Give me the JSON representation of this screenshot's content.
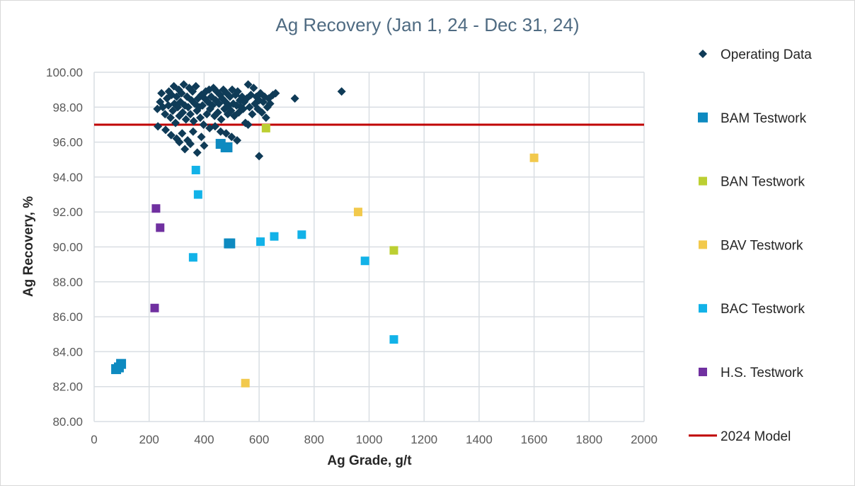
{
  "chart_data": {
    "type": "scatter",
    "title": "Ag Recovery (Jan 1, 24 - Dec 31, 24)",
    "xlabel": "Ag Grade, g/t",
    "ylabel": "Ag Recovery, %",
    "xlim": [
      0,
      2000
    ],
    "ylim": [
      80,
      100
    ],
    "x_ticks": [
      "0",
      "200",
      "400",
      "600",
      "800",
      "1000",
      "1200",
      "1400",
      "1600",
      "1800",
      "2000"
    ],
    "y_ticks": [
      "80.00",
      "82.00",
      "84.00",
      "86.00",
      "88.00",
      "90.00",
      "92.00",
      "94.00",
      "96.00",
      "98.00",
      "100.00"
    ],
    "grid": true,
    "legend": "right",
    "series": [
      {
        "name": "Operating Data",
        "marker": "diamond",
        "color": "#0f3b57",
        "points": [
          [
            230,
            97.9
          ],
          [
            240,
            98.3
          ],
          [
            245,
            98.8
          ],
          [
            250,
            98.0
          ],
          [
            258,
            97.6
          ],
          [
            265,
            98.5
          ],
          [
            270,
            98.1
          ],
          [
            272,
            98.9
          ],
          [
            278,
            97.4
          ],
          [
            282,
            98.7
          ],
          [
            286,
            97.8
          ],
          [
            290,
            99.2
          ],
          [
            292,
            98.2
          ],
          [
            296,
            97.1
          ],
          [
            300,
            98.6
          ],
          [
            304,
            98.0
          ],
          [
            308,
            99.0
          ],
          [
            310,
            97.5
          ],
          [
            314,
            98.3
          ],
          [
            318,
            98.8
          ],
          [
            322,
            97.7
          ],
          [
            326,
            99.3
          ],
          [
            330,
            98.1
          ],
          [
            334,
            97.3
          ],
          [
            338,
            98.6
          ],
          [
            342,
            98.0
          ],
          [
            346,
            99.1
          ],
          [
            350,
            97.6
          ],
          [
            354,
            98.4
          ],
          [
            358,
            98.9
          ],
          [
            362,
            97.2
          ],
          [
            366,
            98.2
          ],
          [
            370,
            99.2
          ],
          [
            374,
            97.8
          ],
          [
            378,
            98.5
          ],
          [
            382,
            98.0
          ],
          [
            386,
            97.4
          ],
          [
            390,
            98.7
          ],
          [
            394,
            98.1
          ],
          [
            398,
            97.0
          ],
          [
            402,
            98.5
          ],
          [
            406,
            98.9
          ],
          [
            410,
            97.6
          ],
          [
            414,
            98.3
          ],
          [
            418,
            99.0
          ],
          [
            422,
            97.9
          ],
          [
            426,
            98.6
          ],
          [
            430,
            98.1
          ],
          [
            434,
            99.1
          ],
          [
            438,
            97.5
          ],
          [
            442,
            98.4
          ],
          [
            446,
            98.9
          ],
          [
            450,
            97.7
          ],
          [
            454,
            98.2
          ],
          [
            458,
            98.7
          ],
          [
            462,
            97.3
          ],
          [
            466,
            98.5
          ],
          [
            470,
            99.0
          ],
          [
            474,
            97.9
          ],
          [
            478,
            98.3
          ],
          [
            482,
            98.8
          ],
          [
            486,
            97.6
          ],
          [
            490,
            98.1
          ],
          [
            494,
            98.6
          ],
          [
            498,
            97.8
          ],
          [
            502,
            99.0
          ],
          [
            506,
            98.2
          ],
          [
            510,
            97.5
          ],
          [
            514,
            98.7
          ],
          [
            518,
            98.1
          ],
          [
            522,
            98.9
          ],
          [
            526,
            97.7
          ],
          [
            530,
            98.4
          ],
          [
            534,
            98.0
          ],
          [
            538,
            98.6
          ],
          [
            542,
            97.9
          ],
          [
            546,
            98.3
          ],
          [
            550,
            97.1
          ],
          [
            555,
            98.5
          ],
          [
            560,
            99.3
          ],
          [
            565,
            98.0
          ],
          [
            570,
            98.7
          ],
          [
            575,
            97.6
          ],
          [
            580,
            99.1
          ],
          [
            585,
            98.2
          ],
          [
            590,
            98.6
          ],
          [
            595,
            97.9
          ],
          [
            600,
            98.4
          ],
          [
            605,
            98.8
          ],
          [
            610,
            97.7
          ],
          [
            615,
            98.3
          ],
          [
            620,
            98.6
          ],
          [
            625,
            97.4
          ],
          [
            630,
            98.0
          ],
          [
            635,
            98.5
          ],
          [
            640,
            98.2
          ],
          [
            650,
            98.7
          ],
          [
            660,
            98.8
          ],
          [
            232,
            96.9
          ],
          [
            260,
            96.7
          ],
          [
            280,
            96.4
          ],
          [
            300,
            96.2
          ],
          [
            310,
            96.0
          ],
          [
            320,
            96.5
          ],
          [
            330,
            95.6
          ],
          [
            340,
            96.1
          ],
          [
            350,
            95.9
          ],
          [
            360,
            96.6
          ],
          [
            375,
            95.4
          ],
          [
            390,
            96.3
          ],
          [
            400,
            95.8
          ],
          [
            420,
            96.8
          ],
          [
            440,
            96.9
          ],
          [
            460,
            96.6
          ],
          [
            480,
            96.5
          ],
          [
            500,
            96.3
          ],
          [
            520,
            96.1
          ],
          [
            560,
            97.0
          ],
          [
            600,
            95.2
          ],
          [
            730,
            98.5
          ],
          [
            900,
            98.9
          ]
        ]
      },
      {
        "name": "BAM Testwork",
        "marker": "square-large",
        "color": "#0e8ac0",
        "points": [
          [
            80,
            83.0
          ],
          [
            90,
            83.1
          ],
          [
            98,
            83.3
          ],
          [
            460,
            95.9
          ],
          [
            478,
            95.7
          ],
          [
            485,
            95.7
          ],
          [
            490,
            90.2
          ],
          [
            495,
            90.2
          ]
        ]
      },
      {
        "name": "BAN Testwork",
        "marker": "square",
        "color": "#bccf32",
        "points": [
          [
            625,
            96.8
          ],
          [
            1090,
            89.8
          ]
        ]
      },
      {
        "name": "BAV Testwork",
        "marker": "square",
        "color": "#f2c94c",
        "points": [
          [
            550,
            82.2
          ],
          [
            960,
            92.0
          ],
          [
            1600,
            95.1
          ]
        ]
      },
      {
        "name": "BAC Testwork",
        "marker": "square",
        "color": "#12b2e8",
        "points": [
          [
            370,
            94.4
          ],
          [
            378,
            93.0
          ],
          [
            360,
            89.4
          ],
          [
            490,
            90.2
          ],
          [
            605,
            90.3
          ],
          [
            655,
            90.6
          ],
          [
            755,
            90.7
          ],
          [
            985,
            89.2
          ],
          [
            1090,
            84.7
          ]
        ]
      },
      {
        "name": "H.S. Testwork",
        "marker": "square",
        "color": "#7030a0",
        "points": [
          [
            225,
            92.2
          ],
          [
            240,
            91.1
          ],
          [
            220,
            86.5
          ]
        ]
      },
      {
        "name": "2024 Model",
        "marker": "line",
        "color": "#c00000",
        "y_value": 97.0
      }
    ]
  }
}
